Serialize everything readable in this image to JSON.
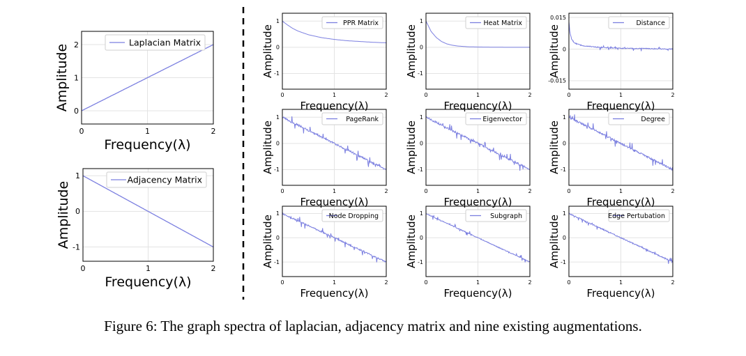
{
  "figure": {
    "caption": "Figure 6: The graph spectra of laplacian, adjacency matrix and nine existing augmentations.",
    "line_color": "#7b7fe0",
    "divider": "dashed vertical line separating the left two panels from the 3x3 grid"
  },
  "chart_data": [
    {
      "id": "laplacian",
      "type": "line",
      "legend": "Laplacian Matrix",
      "xlabel": "Frequency(λ)",
      "ylabel": "Amplitude",
      "xlim": [
        0,
        2
      ],
      "ylim": [
        -0.4,
        2.4
      ],
      "xticks": [
        "0",
        "1",
        "2"
      ],
      "yticks": [
        "0",
        "1",
        "2"
      ],
      "ytick_values": [
        0,
        1,
        2
      ],
      "x": [
        0,
        2
      ],
      "y": [
        0,
        2
      ],
      "noise": 0
    },
    {
      "id": "adjacency",
      "type": "line",
      "legend": "Adjacency Matrix",
      "xlabel": "Frequency(λ)",
      "ylabel": "Amplitude",
      "xlim": [
        0,
        2
      ],
      "ylim": [
        -1.4,
        1.2
      ],
      "xticks": [
        "0",
        "1",
        "2"
      ],
      "yticks": [
        "1",
        "0",
        "-1"
      ],
      "ytick_values": [
        1,
        0,
        -1
      ],
      "x": [
        0,
        2
      ],
      "y": [
        1,
        -1
      ],
      "noise": 0
    },
    {
      "id": "ppr",
      "type": "line",
      "legend": "PPR Matrix",
      "xlabel": "Frequency(λ)",
      "ylabel": "Amplitude",
      "xlim": [
        0,
        2
      ],
      "ylim": [
        -1.6,
        1.3
      ],
      "xticks": [
        "0",
        "1",
        "2"
      ],
      "yticks": [
        "1",
        "0",
        "-1"
      ],
      "ytick_values": [
        1,
        0,
        -1
      ],
      "x": [
        0,
        0.1,
        0.2,
        0.3,
        0.5,
        0.75,
        1,
        1.25,
        1.5,
        1.75,
        2
      ],
      "y": [
        1,
        0.85,
        0.72,
        0.62,
        0.48,
        0.37,
        0.3,
        0.25,
        0.22,
        0.19,
        0.17
      ],
      "noise": 0
    },
    {
      "id": "heat",
      "type": "line",
      "legend": "Heat Matrix",
      "xlabel": "Frequency(λ)",
      "ylabel": "Amplitude",
      "xlim": [
        0,
        2
      ],
      "ylim": [
        -1.6,
        1.3
      ],
      "xticks": [
        "0",
        "1",
        "2"
      ],
      "yticks": [
        "1",
        "0",
        "-1"
      ],
      "ytick_values": [
        1,
        0,
        -1
      ],
      "x": [
        0,
        0.1,
        0.2,
        0.3,
        0.4,
        0.5,
        0.6,
        0.8,
        1,
        1.5,
        2
      ],
      "y": [
        1,
        0.6,
        0.37,
        0.22,
        0.13,
        0.08,
        0.05,
        0.02,
        0.01,
        0,
        0
      ],
      "noise": 0
    },
    {
      "id": "distance",
      "type": "line",
      "legend": "Distance",
      "xlabel": "Frequency(λ)",
      "ylabel": "Amplitude",
      "xlim": [
        0,
        2
      ],
      "ylim": [
        -0.019,
        0.017
      ],
      "xticks": [
        "0",
        "1",
        "2"
      ],
      "yticks": [
        "0.015",
        "0",
        "-0.015"
      ],
      "ytick_values": [
        0.015,
        0,
        -0.015
      ],
      "x": [
        0,
        0.02,
        0.05,
        0.1,
        0.2,
        0.3,
        0.5,
        0.8,
        1,
        1.5,
        2
      ],
      "y": [
        0.013,
        0.008,
        0.005,
        0.003,
        0.002,
        0.0015,
        0.001,
        0.0006,
        0.0004,
        0.0002,
        0
      ],
      "noise": 0.0007
    },
    {
      "id": "pagerank",
      "type": "line",
      "legend": "PageRank",
      "xlabel": "Frequency(λ)",
      "ylabel": "Amplitude",
      "xlim": [
        0,
        2
      ],
      "ylim": [
        -1.6,
        1.3
      ],
      "xticks": [
        "0",
        "1",
        "2"
      ],
      "yticks": [
        "1",
        "0",
        "-1"
      ],
      "ytick_values": [
        1,
        0,
        -1
      ],
      "x": [
        0,
        2
      ],
      "y": [
        1,
        -1
      ],
      "noise": 0.12
    },
    {
      "id": "eigenvector",
      "type": "line",
      "legend": "Eigenvector",
      "xlabel": "Frequency(λ)",
      "ylabel": "Amplitude",
      "xlim": [
        0,
        2
      ],
      "ylim": [
        -1.6,
        1.3
      ],
      "xticks": [
        "0",
        "1",
        "2"
      ],
      "yticks": [
        "1",
        "0",
        "-1"
      ],
      "ytick_values": [
        1,
        0,
        -1
      ],
      "x": [
        0,
        2
      ],
      "y": [
        1,
        -1
      ],
      "noise": 0.12
    },
    {
      "id": "degree",
      "type": "line",
      "legend": "Degree",
      "xlabel": "Frequency(λ)",
      "ylabel": "Amplitude",
      "xlim": [
        0,
        2
      ],
      "ylim": [
        -1.6,
        1.3
      ],
      "xticks": [
        "0",
        "1",
        "2"
      ],
      "yticks": [
        "1",
        "0",
        "-1"
      ],
      "ytick_values": [
        1,
        0,
        -1
      ],
      "x": [
        0,
        2
      ],
      "y": [
        1,
        -1
      ],
      "noise": 0.12
    },
    {
      "id": "node-dropping",
      "type": "line",
      "legend": "Node Dropping",
      "xlabel": "Frequency(λ)",
      "ylabel": "Amplitude",
      "xlim": [
        0,
        2
      ],
      "ylim": [
        -1.6,
        1.3
      ],
      "xticks": [
        "0",
        "1",
        "2"
      ],
      "yticks": [
        "1",
        "0",
        "-1"
      ],
      "ytick_values": [
        1,
        0,
        -1
      ],
      "x": [
        0,
        2
      ],
      "y": [
        1,
        -1
      ],
      "noise": 0.1
    },
    {
      "id": "subgraph",
      "type": "line",
      "legend": "Subgraph",
      "xlabel": "Frequency(λ)",
      "ylabel": "Amplitude",
      "xlim": [
        0,
        2
      ],
      "ylim": [
        -1.6,
        1.3
      ],
      "xticks": [
        "0",
        "1",
        "2"
      ],
      "yticks": [
        "1",
        "0",
        "-1"
      ],
      "ytick_values": [
        1,
        0,
        -1
      ],
      "x": [
        0,
        2
      ],
      "y": [
        1,
        -1
      ],
      "noise": 0.06
    },
    {
      "id": "edge-pertubation",
      "type": "line",
      "legend": "Edge Pertubation",
      "xlabel": "Frequency(λ)",
      "ylabel": "Amplitude",
      "xlim": [
        0,
        2
      ],
      "ylim": [
        -1.6,
        1.3
      ],
      "xticks": [
        "0",
        "1",
        "2"
      ],
      "yticks": [
        "1",
        "0",
        "-1"
      ],
      "ytick_values": [
        1,
        0,
        -1
      ],
      "x": [
        0,
        2
      ],
      "y": [
        1,
        -1
      ],
      "noise": 0.08
    }
  ]
}
